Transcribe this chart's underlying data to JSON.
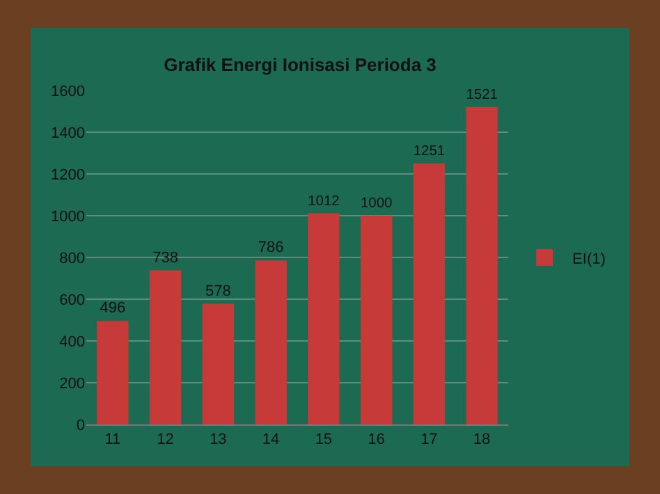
{
  "chart_data": {
    "type": "bar",
    "title": "Grafik Energi Ionisasi Perioda 3",
    "categories": [
      "11",
      "12",
      "13",
      "14",
      "15",
      "16",
      "17",
      "18"
    ],
    "series": [
      {
        "name": "EI(1)",
        "color": "#c63a3a",
        "values": [
          496,
          738,
          578,
          786,
          1012,
          1000,
          1251,
          1521
        ]
      }
    ],
    "ylim": [
      0,
      1600
    ],
    "yticks": [
      0,
      200,
      400,
      600,
      800,
      1000,
      1200,
      1400,
      1600
    ],
    "grid": "y",
    "legend": "right",
    "data_labels": true
  }
}
